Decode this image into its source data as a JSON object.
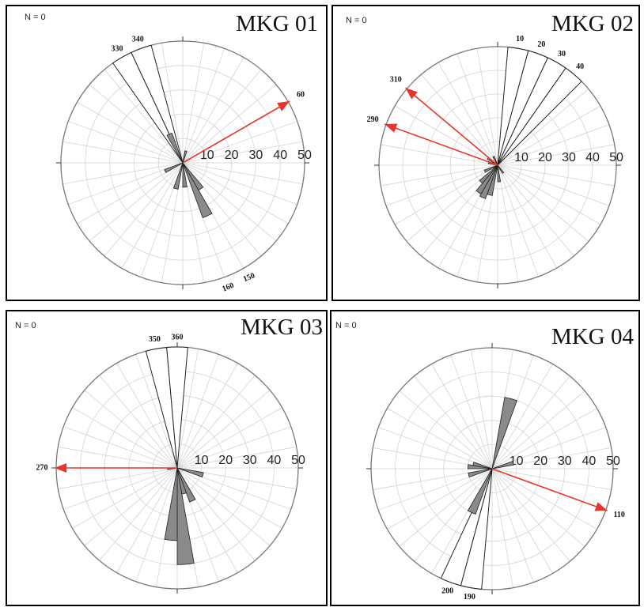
{
  "chart_data": [
    {
      "type": "rose",
      "title": "MKG 01",
      "corner_label": "N = 0",
      "radial_axis": {
        "ticks": [
          10,
          20,
          30,
          40,
          50
        ],
        "max": 50
      },
      "bin_width_deg": 10,
      "colors": {
        "bars": "#8a8a8a",
        "mean_vector": "#e8342a"
      },
      "filled_bins": [
        {
          "center": 15,
          "value": 5
        },
        {
          "center": 145,
          "value": 13
        },
        {
          "center": 155,
          "value": 24
        },
        {
          "center": 175,
          "value": 10
        },
        {
          "center": 195,
          "value": 11
        },
        {
          "center": 245,
          "value": 8
        },
        {
          "center": 335,
          "value": 13
        }
      ],
      "outlier_bins": [
        {
          "center": 330,
          "value": 50,
          "label": "330"
        },
        {
          "center": 340,
          "value": 50,
          "label": "340"
        }
      ],
      "outlier_labels_opposite": [
        "160",
        "150"
      ],
      "mean_vector": {
        "direction": 60,
        "label": "60"
      }
    },
    {
      "type": "rose",
      "title": "MKG 02",
      "corner_label": "N = 0",
      "radial_axis": {
        "ticks": [
          10,
          20,
          30,
          40,
          50
        ],
        "max": 50
      },
      "bin_width_deg": 10,
      "colors": {
        "bars": "#8a8a8a",
        "mean_vector": "#e8342a"
      },
      "filled_bins": [
        {
          "center": 145,
          "value": 4
        },
        {
          "center": 175,
          "value": 7
        },
        {
          "center": 195,
          "value": 13
        },
        {
          "center": 205,
          "value": 15
        },
        {
          "center": 215,
          "value": 14
        },
        {
          "center": 225,
          "value": 10
        },
        {
          "center": 245,
          "value": 6
        },
        {
          "center": 285,
          "value": 4
        },
        {
          "center": 305,
          "value": 5
        },
        {
          "center": 335,
          "value": 4
        }
      ],
      "outlier_bins": [
        {
          "center": 10,
          "value": 50,
          "label": "10"
        },
        {
          "center": 20,
          "value": 50,
          "label": "20"
        },
        {
          "center": 30,
          "value": 50,
          "label": "30"
        },
        {
          "center": 40,
          "value": 50,
          "label": "40"
        }
      ],
      "mean_vectors": [
        {
          "direction": 310,
          "label": "310"
        },
        {
          "direction": 290,
          "label": "290"
        }
      ]
    },
    {
      "type": "rose",
      "title": "MKG 03",
      "corner_label": "N = 0",
      "radial_axis": {
        "ticks": [
          10,
          20,
          30,
          40,
          50
        ],
        "max": 50
      },
      "bin_width_deg": 10,
      "colors": {
        "bars": "#8a8a8a",
        "mean_vector": "#e8342a"
      },
      "filled_bins": [
        {
          "center": 105,
          "value": 11
        },
        {
          "center": 155,
          "value": 15
        },
        {
          "center": 165,
          "value": 11
        },
        {
          "center": 175,
          "value": 40
        },
        {
          "center": 185,
          "value": 30
        },
        {
          "center": 265,
          "value": 4
        }
      ],
      "outlier_bins": [
        {
          "center": 350,
          "value": 50,
          "label": "350"
        },
        {
          "center": 360,
          "value": 50,
          "label": "360"
        }
      ],
      "mean_vector": {
        "direction": 270,
        "label": "270"
      }
    },
    {
      "type": "rose",
      "title": "MKG 04",
      "corner_label": "N = 0",
      "radial_axis": {
        "ticks": [
          10,
          20,
          30,
          40,
          50
        ],
        "max": 50
      },
      "bin_width_deg": 10,
      "colors": {
        "bars": "#8a8a8a",
        "mean_vector": "#e8342a"
      },
      "filled_bins": [
        {
          "center": 15,
          "value": 30
        },
        {
          "center": 75,
          "value": 9
        },
        {
          "center": 205,
          "value": 20
        },
        {
          "center": 255,
          "value": 10
        },
        {
          "center": 275,
          "value": 10
        },
        {
          "center": 285,
          "value": 8
        }
      ],
      "outlier_bins": [
        {
          "center": 190,
          "value": 50,
          "label": "190"
        },
        {
          "center": 200,
          "value": 50,
          "label": "200"
        }
      ],
      "mean_vector": {
        "direction": 110,
        "label": "110"
      }
    }
  ]
}
